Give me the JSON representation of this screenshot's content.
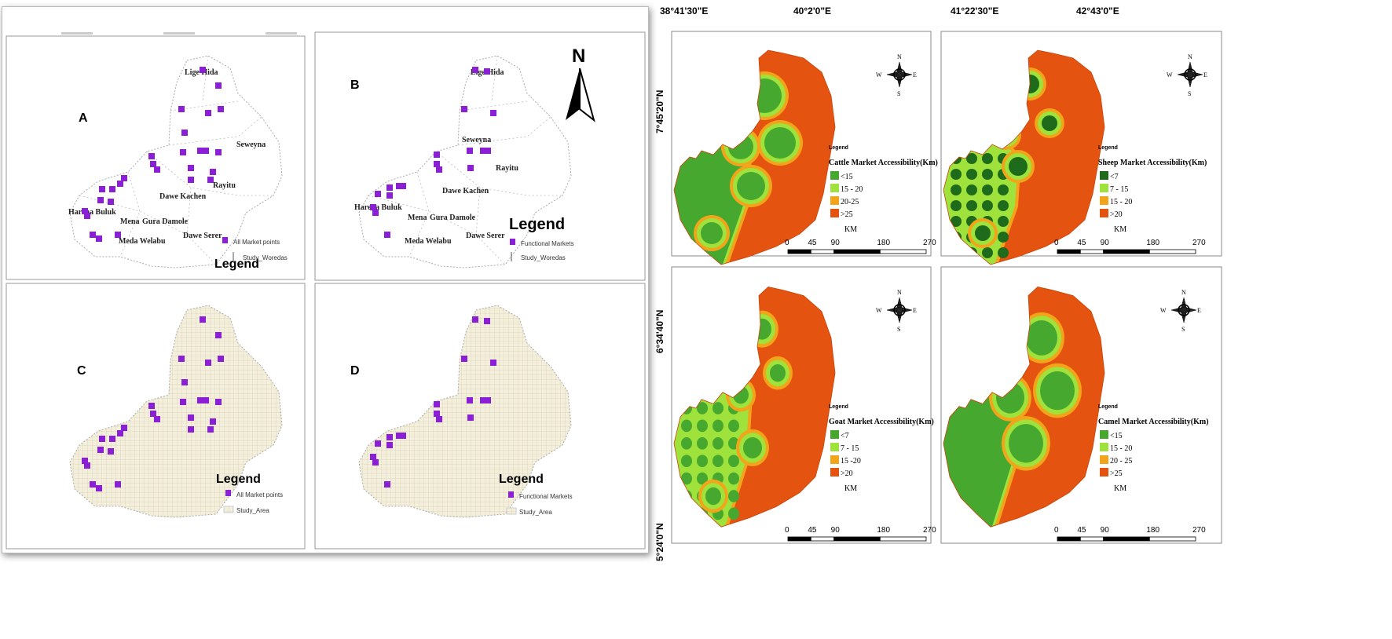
{
  "left_figure": {
    "north_arrow_label": "N",
    "panels": [
      {
        "letter": "A",
        "legend_title": "Legend",
        "legend_items": [
          "All Market points",
          "Study_Woredas"
        ],
        "place_labels": [
          "Lige Hida",
          "Seweyna",
          "Rayitu",
          "Dawe Kachen",
          "Harena Buluk",
          "Mena",
          "Gura Damole",
          "Dawe Serer",
          "Meda Welabu"
        ]
      },
      {
        "letter": "B",
        "legend_title": "Legend",
        "legend_items": [
          "Functional Markets",
          "Study_Woredas"
        ],
        "place_labels": [
          "Lige Hida",
          "Seweyna",
          "Rayitu",
          "Dawe Kachen",
          "Harena Buluk",
          "Mena",
          "Gura Damole",
          "Dawe Serer",
          "Meda Welabu"
        ]
      },
      {
        "letter": "C",
        "legend_title": "Legend",
        "legend_items": [
          "All Market points",
          "Study_Area"
        ]
      },
      {
        "letter": "D",
        "legend_title": "Legend",
        "legend_items": [
          "Functional Markets",
          "Study_Area"
        ]
      }
    ],
    "colors": {
      "market_point": "#8b1fd6",
      "study_area": "#f3efdc"
    }
  },
  "right_figure": {
    "longitude_labels": [
      "38°41'30\"E",
      "40°2'0\"E",
      "41°22'30\"E",
      "42°43'0\"E"
    ],
    "latitude_labels": [
      "7°45'20\"N",
      "6°34'40\"N",
      "5°24'0\"N"
    ],
    "compass": {
      "n": "N",
      "s": "S",
      "e": "E",
      "w": "W"
    },
    "scale_labels": [
      "0",
      "45",
      "90",
      "180",
      "270"
    ],
    "scale_unit": "KM",
    "maps": [
      {
        "legend_title": "Legend",
        "title": "Cattle Market Accessibility(Km)",
        "classes": [
          {
            "label": "<15",
            "color": "#46a82e"
          },
          {
            "label": "15 - 20",
            "color": "#9fe23c"
          },
          {
            "label": "20-25",
            "color": "#f2a51a"
          },
          {
            "label": ">25",
            "color": "#e4530f"
          }
        ]
      },
      {
        "legend_title": "Legend",
        "title": "Sheep Market Accessibility(Km)",
        "classes": [
          {
            "label": "<7",
            "color": "#1f6b1c"
          },
          {
            "label": "7 - 15",
            "color": "#9fe23c"
          },
          {
            "label": "15 - 20",
            "color": "#f2a51a"
          },
          {
            "label": ">20",
            "color": "#e4530f"
          }
        ]
      },
      {
        "legend_title": "Legend",
        "title": "Goat Market Accessibility(Km)",
        "classes": [
          {
            "label": "<7",
            "color": "#46a82e"
          },
          {
            "label": "7 - 15",
            "color": "#9fe23c"
          },
          {
            "label": "15 -20",
            "color": "#f2a51a"
          },
          {
            "label": ">20",
            "color": "#e4530f"
          }
        ]
      },
      {
        "legend_title": "Legend",
        "title": "Camel Market Accessibility(Km)",
        "classes": [
          {
            "label": "<15",
            "color": "#46a82e"
          },
          {
            "label": "15 - 20",
            "color": "#9fe23c"
          },
          {
            "label": "20 - 25",
            "color": "#f2a51a"
          },
          {
            "label": ">25",
            "color": "#e4530f"
          }
        ]
      }
    ]
  }
}
